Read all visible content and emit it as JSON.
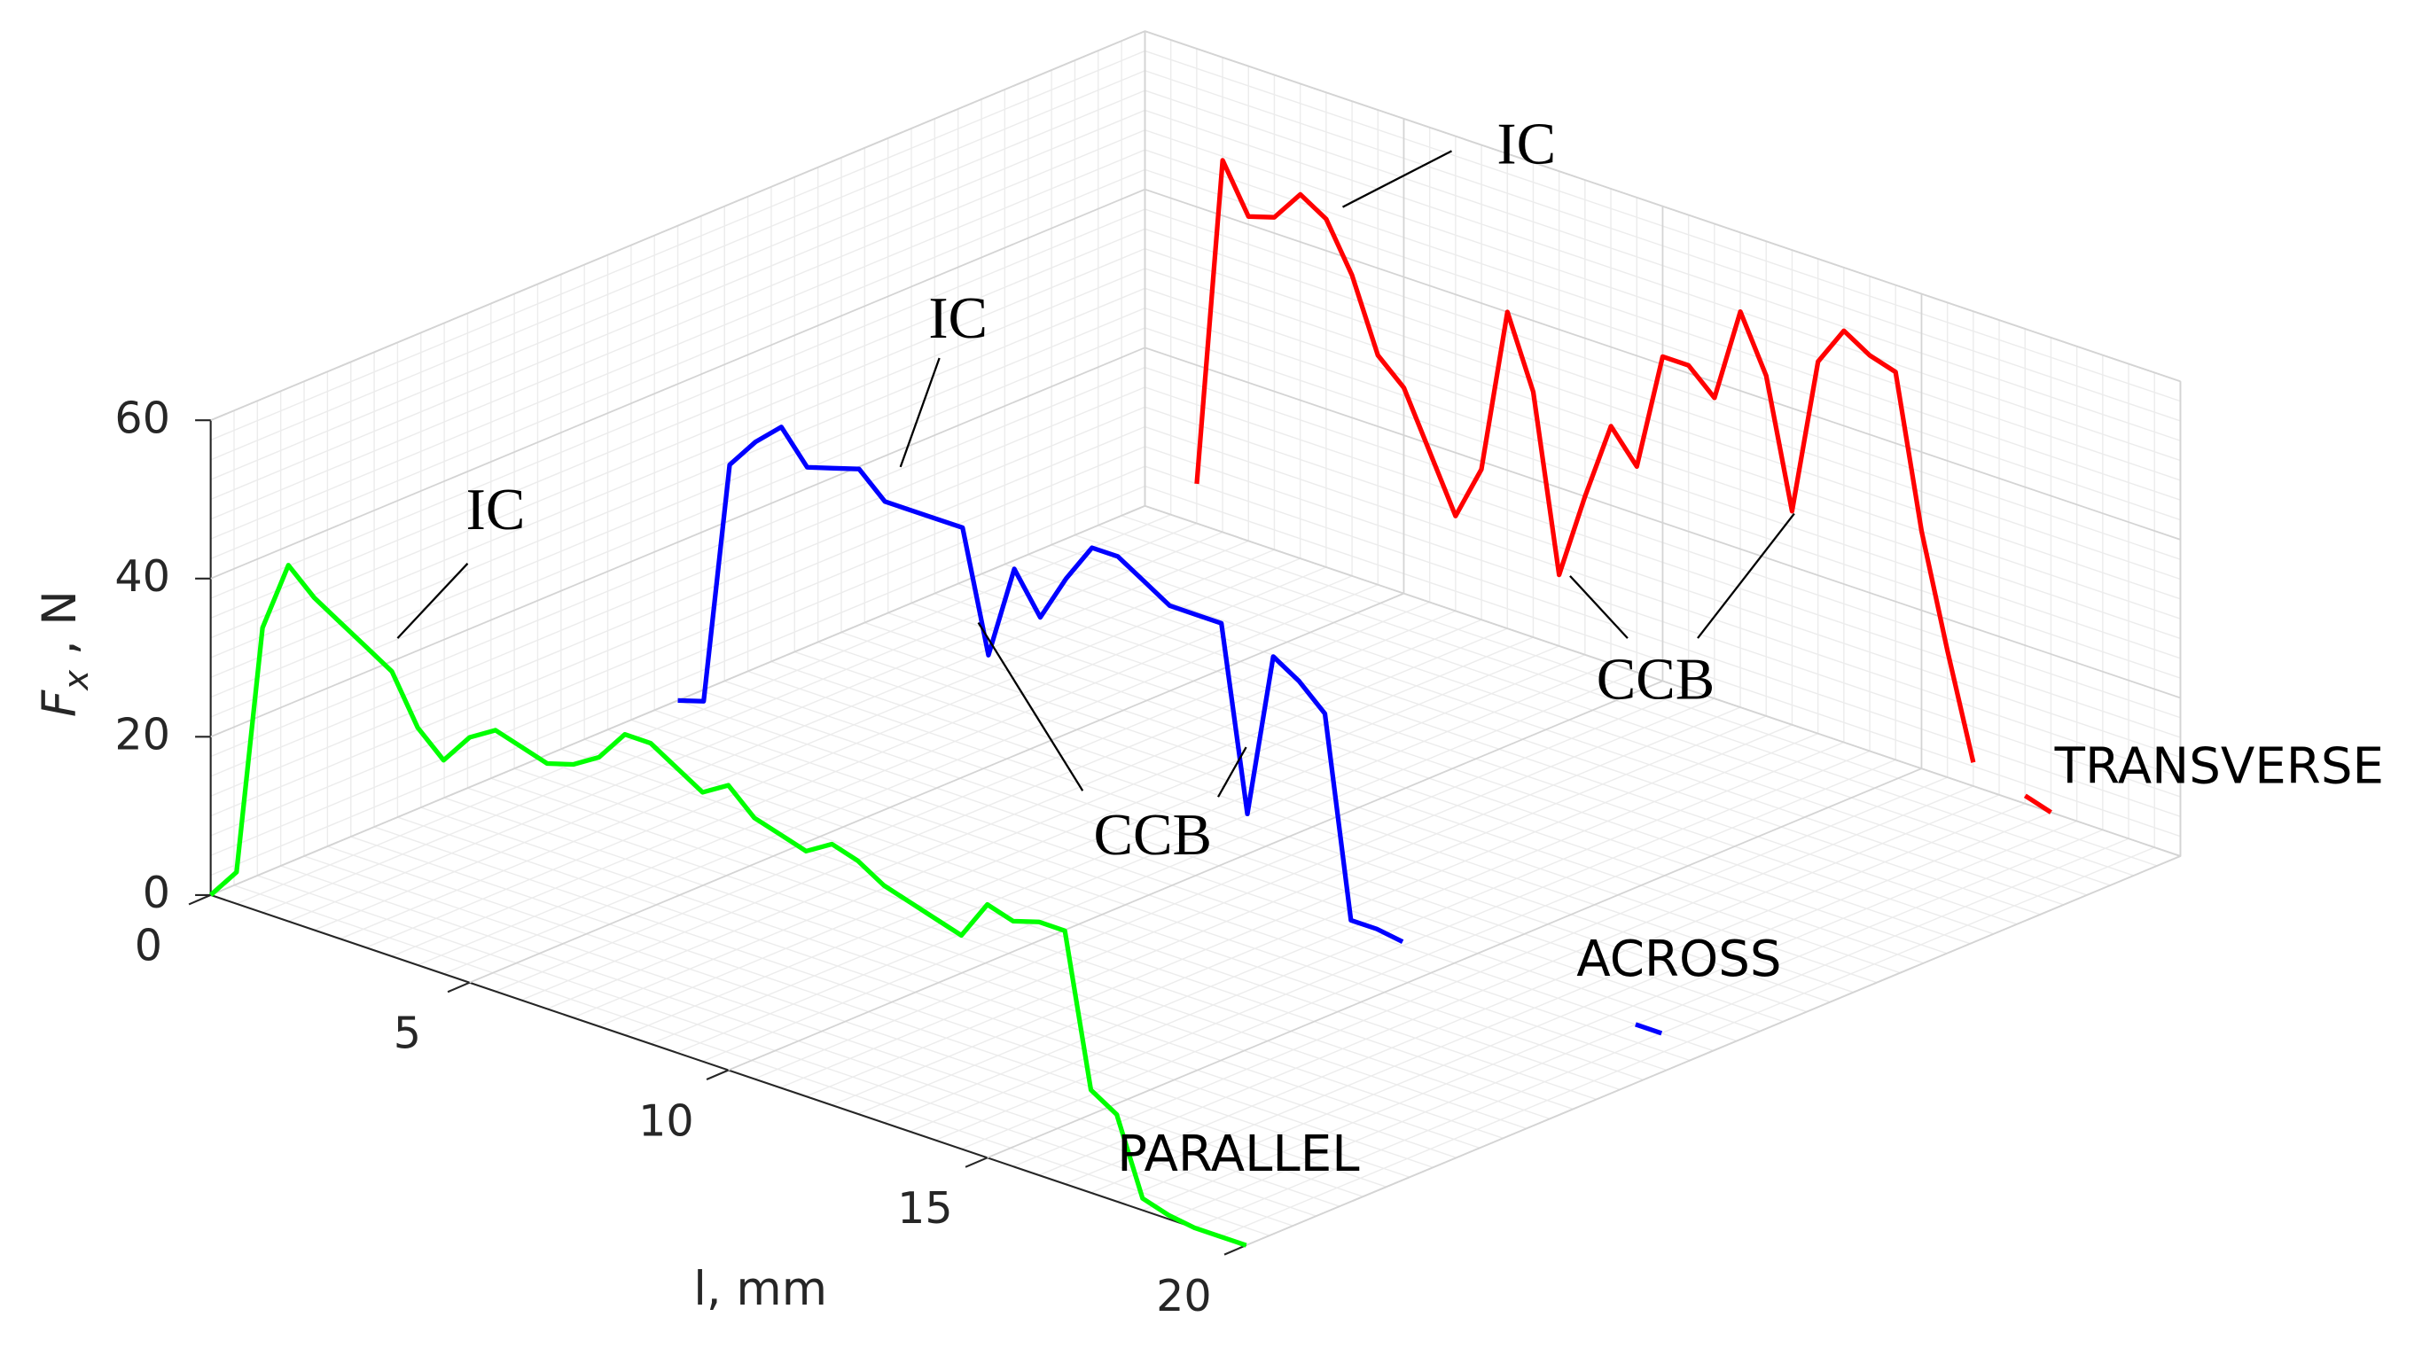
{
  "chart_data": {
    "type": "line3d",
    "x": [
      0,
      0.5,
      1,
      1.5,
      2,
      2.5,
      3,
      3.5,
      4,
      4.5,
      5,
      5.5,
      6,
      6.5,
      7,
      7.5,
      8,
      8.5,
      9,
      9.5,
      10,
      10.5,
      11,
      11.5,
      12,
      12.5,
      13,
      13.5,
      14,
      14.5,
      15,
      15.5,
      16,
      16.5,
      17,
      17.5,
      18,
      18.5,
      19,
      19.5,
      20
    ],
    "series": [
      {
        "name": "PARALLEL",
        "color": "#00ff00",
        "values": [
          0,
          4,
          36,
          45,
          42,
          40,
          38,
          36,
          30,
          27,
          31,
          33,
          32,
          31,
          32,
          34,
          38,
          38,
          36,
          34,
          36,
          33,
          32,
          31,
          33,
          32,
          30,
          29,
          28,
          27,
          32,
          31,
          32,
          32,
          13,
          11,
          1.5,
          0.5,
          0,
          0,
          0
        ]
      },
      {
        "name": "ACROSS",
        "color": "#0000ff",
        "values": [
          0,
          1,
          32,
          36,
          39,
          35,
          36,
          37,
          34,
          34,
          34,
          34,
          19,
          31,
          26,
          32,
          37,
          37,
          35,
          33,
          33,
          33,
          10,
          31,
          29,
          26,
          1,
          1,
          0.5,
          null,
          null,
          null,
          null,
          null,
          null,
          null,
          null,
          0,
          0,
          null,
          null
        ]
      },
      {
        "name": "TRANSVERSE",
        "color": "#ff0000",
        "values": [
          null,
          null,
          5,
          47,
          41,
          42,
          46,
          44,
          38,
          29,
          26,
          19,
          12,
          19,
          40,
          31,
          9,
          20,
          30,
          26,
          41,
          41,
          38,
          50,
          43,
          27,
          47,
          52,
          50,
          49,
          30,
          16,
          3,
          null,
          1,
          0,
          null,
          null,
          null,
          null,
          null
        ]
      }
    ],
    "xlim": [
      0,
      20
    ],
    "xticks": [
      0,
      5,
      10,
      15,
      20
    ],
    "ylim": [
      0,
      60
    ],
    "yticks": [
      0,
      20,
      40,
      60
    ],
    "xlabel": "l, mm",
    "ylabel": [
      "F",
      "x",
      " , N"
    ],
    "grid": true,
    "annotations": [
      {
        "text": "IC"
      },
      {
        "text": "IC"
      },
      {
        "text": "IC"
      },
      {
        "text": "CCB"
      },
      {
        "text": "CCB"
      }
    ]
  }
}
